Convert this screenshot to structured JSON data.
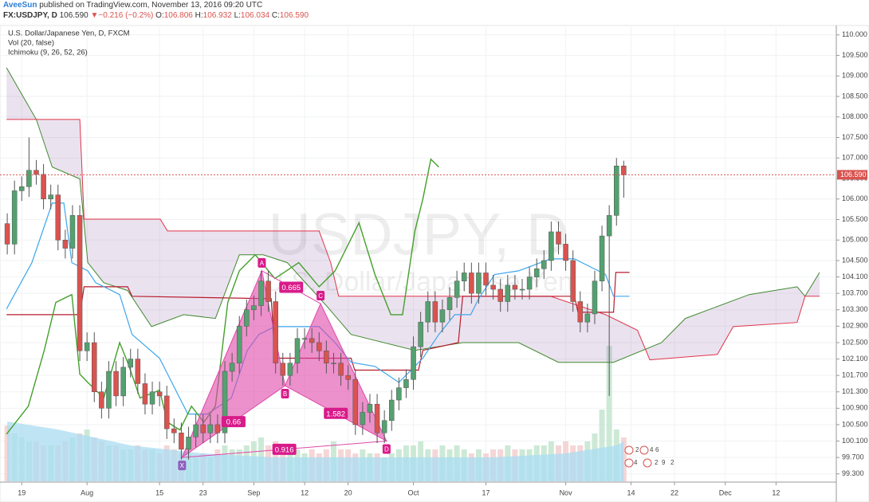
{
  "header": {
    "author": "AveeSun",
    "published": "published on TradingView.com, November 13, 2016 09:20 UTC",
    "symbol": "FX:USDJPY, D",
    "price": "106.590",
    "change_arrow": "▼",
    "change": "−0.216 (−0.2%)",
    "ohlc": [
      {
        "label": "O:",
        "value": "106.806"
      },
      {
        "label": "H:",
        "value": "106.932"
      },
      {
        "label": "L:",
        "value": "106.034"
      },
      {
        "label": "C:",
        "value": "106.590"
      }
    ]
  },
  "chart_data": {
    "type": "candlestick",
    "title": "U.S. Dollar/Japanese Yen, D, FXCM",
    "indicators": [
      "Vol (20, false)",
      "Ichimoku (9, 26, 52, 26)"
    ],
    "watermark": [
      "USDJPY, D",
      "U.S. Dollar/Japanese Yen"
    ],
    "xlim": [
      -3,
      112.2
    ],
    "ylim": [
      99.12,
      110.19
    ],
    "grid": true,
    "xticks": [
      {
        "value": 0,
        "label": "19"
      },
      {
        "value": 9,
        "label": "Aug"
      },
      {
        "value": 19,
        "label": "15"
      },
      {
        "value": 25,
        "label": "23"
      },
      {
        "value": 32,
        "label": "Sep"
      },
      {
        "value": 39,
        "label": "12"
      },
      {
        "value": 45,
        "label": "20"
      },
      {
        "value": 54,
        "label": "Oct"
      },
      {
        "value": 64,
        "label": "17"
      },
      {
        "value": 75,
        "label": "Nov"
      },
      {
        "value": 84,
        "label": "14"
      },
      {
        "value": 90,
        "label": "22"
      },
      {
        "value": 97,
        "label": "Dec"
      },
      {
        "value": 104,
        "label": "12"
      }
    ],
    "yticks": [
      {
        "value": 110,
        "label": "110.000"
      },
      {
        "value": 109.5,
        "label": "109.500"
      },
      {
        "value": 109,
        "label": "109.000"
      },
      {
        "value": 108.5,
        "label": "108.500"
      },
      {
        "value": 108,
        "label": "108.000"
      },
      {
        "value": 107.5,
        "label": "107.500"
      },
      {
        "value": 107,
        "label": "107.000"
      },
      {
        "value": 106.5,
        "label": "106.500"
      },
      {
        "value": 106,
        "label": "106.000"
      },
      {
        "value": 105.5,
        "label": "105.500"
      },
      {
        "value": 105,
        "label": "105.000"
      },
      {
        "value": 104.5,
        "label": "104.500"
      },
      {
        "value": 104.1,
        "label": "104.100"
      },
      {
        "value": 103.7,
        "label": "103.700"
      },
      {
        "value": 103.3,
        "label": "103.300"
      },
      {
        "value": 102.9,
        "label": "102.900"
      },
      {
        "value": 102.5,
        "label": "102.500"
      },
      {
        "value": 102.1,
        "label": "102.100"
      },
      {
        "value": 101.7,
        "label": "101.700"
      },
      {
        "value": 101.3,
        "label": "101.300"
      },
      {
        "value": 100.9,
        "label": "100.900"
      },
      {
        "value": 100.5,
        "label": "100.500"
      },
      {
        "value": 100.1,
        "label": "100.100"
      },
      {
        "value": 99.7,
        "label": "99.700"
      },
      {
        "value": 99.3,
        "label": "99.300"
      }
    ],
    "last_price": {
      "value": 106.59,
      "label": "106.590"
    },
    "up_color": "#53a16f",
    "down_color": "#d9534f",
    "volume_up_color": "#bfe3cc",
    "volume_down_color": "#f2cccc",
    "x": [
      -2,
      -1,
      0,
      1,
      2,
      3,
      4,
      5,
      6,
      7,
      8,
      9,
      10,
      11,
      12,
      13,
      14,
      15,
      16,
      17,
      18,
      19,
      20,
      21,
      22,
      23,
      24,
      25,
      26,
      27,
      28,
      29,
      30,
      31,
      32,
      33,
      34,
      35,
      36,
      37,
      38,
      39,
      40,
      41,
      42,
      43,
      44,
      45,
      46,
      47,
      48,
      49,
      50,
      51,
      52,
      53,
      54,
      55,
      56,
      57,
      58,
      59,
      60,
      61,
      62,
      63,
      64,
      65,
      66,
      67,
      68,
      69,
      70,
      71,
      72,
      73,
      74,
      75,
      76,
      77,
      78,
      79,
      80,
      81,
      82,
      83
    ],
    "candles": [
      [
        105.4,
        105.65,
        104.65,
        104.9
      ],
      [
        104.9,
        106.45,
        104.65,
        106.2
      ],
      [
        106.2,
        106.55,
        105.95,
        106.3
      ],
      [
        106.3,
        107.5,
        106.05,
        106.7
      ],
      [
        106.7,
        106.95,
        106.35,
        106.6
      ],
      [
        106.6,
        106.85,
        105.75,
        106.0
      ],
      [
        106.0,
        106.35,
        105.75,
        106.1
      ],
      [
        106.1,
        106.35,
        104.75,
        105.0
      ],
      [
        105.0,
        105.25,
        104.55,
        104.8
      ],
      [
        104.8,
        105.85,
        104.55,
        105.6
      ],
      [
        105.6,
        105.85,
        102.05,
        102.3
      ],
      [
        102.3,
        102.75,
        102.05,
        102.5
      ],
      [
        102.5,
        102.75,
        101.05,
        101.3
      ],
      [
        101.3,
        101.55,
        100.65,
        100.9
      ],
      [
        100.9,
        102.05,
        100.65,
        101.8
      ],
      [
        101.8,
        102.05,
        100.95,
        101.2
      ],
      [
        101.2,
        102.15,
        100.95,
        101.9
      ],
      [
        101.9,
        102.35,
        101.65,
        102.1
      ],
      [
        102.1,
        102.35,
        101.25,
        101.5
      ],
      [
        101.5,
        101.75,
        100.75,
        101.0
      ],
      [
        101.0,
        101.55,
        100.75,
        101.3
      ],
      [
        101.3,
        101.55,
        100.95,
        101.2
      ],
      [
        101.2,
        101.45,
        100.15,
        100.4
      ],
      [
        100.4,
        100.65,
        100.05,
        100.3
      ],
      [
        100.3,
        100.55,
        99.65,
        99.9
      ],
      [
        99.9,
        100.45,
        99.65,
        100.2
      ],
      [
        100.2,
        100.75,
        99.95,
        100.5
      ],
      [
        100.5,
        100.75,
        100.05,
        100.3
      ],
      [
        100.3,
        100.75,
        100.05,
        100.5
      ],
      [
        100.5,
        100.75,
        100.05,
        100.3
      ],
      [
        100.3,
        102.05,
        100.05,
        101.8
      ],
      [
        101.8,
        102.25,
        101.55,
        102.0
      ],
      [
        102.0,
        103.15,
        101.75,
        102.9
      ],
      [
        102.9,
        103.55,
        102.65,
        103.3
      ],
      [
        103.3,
        103.65,
        103.05,
        103.4
      ],
      [
        103.4,
        104.25,
        103.15,
        104.0
      ],
      [
        104.0,
        104.25,
        103.25,
        103.5
      ],
      [
        103.5,
        103.75,
        101.75,
        102.0
      ],
      [
        102.0,
        102.25,
        101.45,
        101.7
      ],
      [
        101.7,
        102.25,
        101.45,
        102.0
      ],
      [
        102.0,
        102.85,
        101.75,
        102.6
      ],
      [
        102.6,
        102.85,
        102.35,
        102.6
      ],
      [
        102.6,
        102.85,
        102.25,
        102.5
      ],
      [
        102.5,
        102.75,
        102.05,
        102.3
      ],
      [
        102.3,
        102.55,
        101.75,
        102.0
      ],
      [
        102.0,
        102.25,
        101.75,
        102.0
      ],
      [
        102.0,
        102.25,
        101.45,
        101.7
      ],
      [
        101.7,
        101.95,
        101.35,
        101.6
      ],
      [
        101.6,
        101.85,
        100.25,
        100.5
      ],
      [
        100.5,
        101.05,
        100.25,
        100.8
      ],
      [
        100.8,
        101.25,
        100.55,
        101.0
      ],
      [
        101.0,
        101.25,
        100.05,
        100.3
      ],
      [
        100.3,
        100.85,
        100.05,
        100.6
      ],
      [
        100.6,
        101.35,
        100.35,
        101.1
      ],
      [
        101.1,
        101.65,
        100.85,
        101.4
      ],
      [
        101.4,
        101.85,
        101.15,
        101.6
      ],
      [
        101.6,
        102.65,
        101.35,
        102.4
      ],
      [
        102.4,
        103.25,
        102.15,
        103.0
      ],
      [
        103.0,
        103.75,
        102.75,
        103.5
      ],
      [
        103.5,
        103.75,
        102.75,
        103.0
      ],
      [
        103.0,
        103.55,
        102.75,
        103.3
      ],
      [
        103.3,
        103.85,
        103.05,
        103.6
      ],
      [
        103.6,
        104.25,
        103.35,
        104.0
      ],
      [
        104.0,
        104.45,
        103.75,
        104.2
      ],
      [
        104.2,
        104.45,
        103.45,
        103.7
      ],
      [
        103.7,
        104.45,
        103.45,
        104.2
      ],
      [
        104.2,
        104.45,
        103.65,
        103.9
      ],
      [
        103.9,
        104.15,
        103.55,
        103.8
      ],
      [
        103.8,
        104.05,
        103.25,
        103.5
      ],
      [
        103.5,
        104.15,
        103.25,
        103.9
      ],
      [
        103.9,
        104.15,
        103.55,
        103.8
      ],
      [
        103.8,
        104.05,
        103.55,
        103.8
      ],
      [
        103.8,
        104.35,
        103.55,
        104.1
      ],
      [
        104.1,
        104.55,
        103.85,
        104.3
      ],
      [
        104.3,
        104.75,
        104.05,
        104.5
      ],
      [
        104.5,
        105.45,
        104.25,
        105.2
      ],
      [
        105.2,
        105.45,
        104.65,
        104.9
      ],
      [
        104.9,
        105.15,
        104.25,
        104.5
      ],
      [
        104.5,
        104.75,
        103.25,
        103.5
      ],
      [
        103.5,
        103.75,
        102.75,
        103.0
      ],
      [
        103.0,
        103.45,
        102.75,
        103.2
      ],
      [
        103.2,
        104.25,
        102.95,
        104.0
      ],
      [
        104.0,
        105.35,
        103.75,
        105.1
      ],
      [
        105.1,
        105.85,
        101.2,
        105.6
      ],
      [
        105.6,
        107.0,
        105.35,
        106.806
      ],
      [
        106.806,
        106.932,
        106.034,
        106.59
      ]
    ],
    "volume": [
      70,
      60,
      55,
      50,
      50,
      45,
      45,
      45,
      50,
      55,
      60,
      65,
      55,
      50,
      45,
      45,
      40,
      40,
      45,
      40,
      40,
      35,
      45,
      40,
      35,
      35,
      30,
      35,
      30,
      40,
      45,
      40,
      40,
      45,
      50,
      55,
      45,
      50,
      40,
      40,
      40,
      35,
      40,
      35,
      40,
      50,
      40,
      40,
      35,
      40,
      35,
      35,
      30,
      35,
      40,
      45,
      45,
      50,
      40,
      40,
      45,
      40,
      45,
      40,
      35,
      40,
      35,
      40,
      40,
      45,
      40,
      40,
      40,
      45,
      45,
      50,
      45,
      50,
      45,
      45,
      50,
      60,
      90,
      170,
      65,
      55
    ],
    "volume_ma": {
      "color": "#a9dcf2",
      "x": [
        -2,
        5,
        15,
        25,
        35,
        45,
        55,
        65,
        75,
        82,
        83
      ],
      "values": [
        75,
        65,
        45,
        35,
        30,
        30,
        30,
        30,
        35,
        45,
        50
      ]
    },
    "ichimoku": {
      "cloud_color": "#9b6fb0",
      "span_a": {
        "color": "#3f8a2e",
        "x": [
          -2.1,
          2.0,
          4.2,
          8.0,
          9.1,
          11.3,
          14.6,
          17.9,
          22.3,
          26.7,
          30.0,
          33.3,
          36.6,
          42.1,
          45.4,
          54.2,
          60.8,
          68.5,
          74.0,
          81.6,
          88.2,
          91.5,
          100.3,
          106.9,
          108.0,
          110.0
        ],
        "values": [
          109.2,
          107.94,
          106.78,
          106.49,
          104.45,
          103.96,
          103.77,
          102.89,
          103.18,
          103.09,
          104.64,
          104.64,
          104.45,
          103.38,
          102.7,
          102.31,
          102.5,
          102.5,
          102.02,
          102.02,
          102.5,
          103.09,
          103.67,
          103.86,
          103.63,
          104.21
        ]
      },
      "span_b": {
        "color": "#e0344a",
        "x": [
          -2.1,
          8.0,
          8.6,
          19.1,
          20.1,
          41.0,
          42.6,
          43.7,
          72.9,
          80.5,
          84.9,
          86.6,
          95.9,
          98.1,
          106.9,
          108.0,
          110.0
        ],
        "values": [
          107.94,
          107.94,
          105.51,
          105.51,
          105.22,
          105.22,
          104.45,
          103.63,
          103.63,
          103.18,
          102.8,
          102.08,
          102.21,
          102.89,
          102.99,
          103.63,
          103.63
        ]
      },
      "conversion": {
        "color": "#3ea6ec",
        "x": [
          -2.1,
          1.4,
          4.2,
          5.8,
          6.9,
          9.1,
          10.2,
          13.5,
          15.2,
          19.0,
          22.9,
          25.6,
          28.9,
          31.1,
          32.7,
          34.9,
          41.0,
          43.2,
          45.4,
          48.7,
          52.0,
          55.3,
          57.5,
          59.7,
          61.9,
          63.0,
          65.2,
          68.5,
          72.9,
          76.2,
          80.5,
          81.6,
          83.8
        ],
        "values": [
          103.32,
          104.45,
          105.9,
          105.9,
          104.45,
          104.25,
          103.96,
          103.67,
          102.7,
          102.12,
          100.76,
          100.76,
          101.15,
          102.31,
          102.7,
          102.89,
          102.89,
          102.5,
          102.02,
          101.92,
          101.53,
          102.12,
          102.7,
          103.18,
          103.18,
          103.57,
          104.16,
          104.25,
          104.54,
          104.54,
          104.16,
          103.63,
          103.63
        ]
      },
      "base": {
        "color": "#b71c2c",
        "x": [
          -2.1,
          8.0,
          8.6,
          14.6,
          15.2,
          34.4,
          34.9,
          45.4,
          45.9,
          54.7,
          55.3,
          60.2,
          60.8,
          76.2,
          76.7,
          81.6,
          81.9,
          83.8
        ],
        "values": [
          103.18,
          103.18,
          103.86,
          103.86,
          103.63,
          103.57,
          102.12,
          102.12,
          101.83,
          101.83,
          102.31,
          102.5,
          103.63,
          103.63,
          103.24,
          103.24,
          104.21,
          104.21
        ]
      },
      "lagging": {
        "color": "#43a02a",
        "x": [
          -2.1,
          0.9,
          3.1,
          4.7,
          6.9,
          8.0,
          9.1,
          11.3,
          13.5,
          14.6,
          16.3,
          19.0,
          20.1,
          21.8,
          23.4,
          25.1,
          26.7,
          28.4,
          30.0,
          32.2,
          34.9,
          38.2,
          41.0,
          43.2,
          46.5,
          48.7,
          50.9,
          52.5,
          54.2,
          55.3,
          56.4,
          57.5
        ],
        "values": [
          100.27,
          100.95,
          102.31,
          103.48,
          103.67,
          101.73,
          101.53,
          101.15,
          102.5,
          102.02,
          101.15,
          101.34,
          100.56,
          100.37,
          100.95,
          100.56,
          100.95,
          103.48,
          104.25,
          104.64,
          104.06,
          104.45,
          103.86,
          104.25,
          105.42,
          104.16,
          103.18,
          103.18,
          105.22,
          106.0,
          106.97,
          106.78
        ]
      }
    },
    "pattern": {
      "color": "#e048a8",
      "label_color": "#d81b8a",
      "points": [
        {
          "label": "X",
          "x": 22.1,
          "price": 99.7
        },
        {
          "label": "A",
          "x": 33.1,
          "price": 104.25
        },
        {
          "label": "B",
          "x": 36.3,
          "price": 101.45
        },
        {
          "label": "C",
          "x": 41.2,
          "price": 103.45
        },
        {
          "label": "D",
          "x": 50.3,
          "price": 100.1
        }
      ],
      "ratios": [
        "0.66",
        "0.665",
        "1.582",
        "0.916"
      ]
    },
    "events": [
      "2",
      "4",
      "6",
      "4",
      "2",
      "9",
      "2"
    ]
  }
}
